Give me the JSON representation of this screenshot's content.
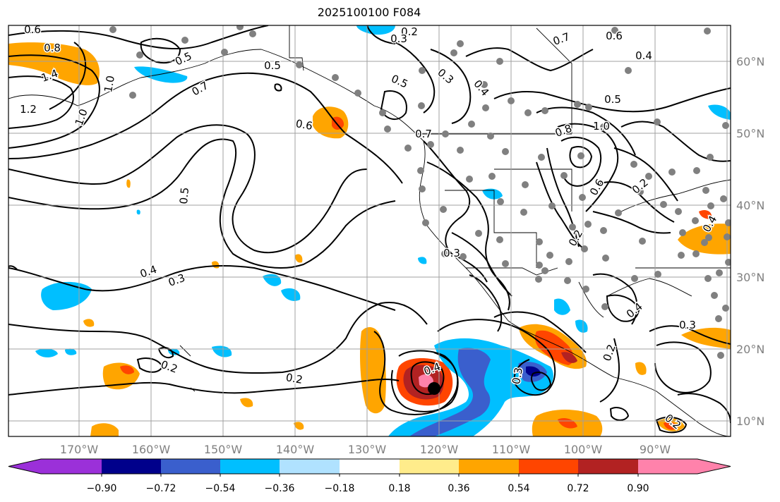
{
  "title": "2025100100 F084",
  "lon_ticks": [
    "170°W",
    "160°W",
    "150°W",
    "140°W",
    "130°W",
    "120°W",
    "110°W",
    "100°W",
    "90°W"
  ],
  "lat_ticks": [
    "60°N",
    "50°N",
    "40°N",
    "30°N",
    "20°N",
    "10°N"
  ],
  "colorbar": {
    "colors": [
      "#9b30d9",
      "#00008b",
      "#3a5fcd",
      "#00bfff",
      "#b0e2ff",
      "#ffffff",
      "#ffec8b",
      "#ffa500",
      "#ff4500",
      "#b22222",
      "#ff82ab"
    ],
    "tick_labels": [
      "−0.90",
      "−0.72",
      "−0.54",
      "−0.36",
      "−0.18",
      "0.18",
      "0.36",
      "0.54",
      "0.72",
      "0.90"
    ]
  },
  "contour_labels": [
    "0.6",
    "0.8",
    "1.4",
    "1.2",
    "1.0",
    "0.5",
    "0.7",
    "0.5",
    "0.2",
    "0.3",
    "0.5",
    "0.3",
    "0.4",
    "0.7",
    "0.6",
    "0.4",
    "0.6",
    "0.5",
    "0.7",
    "0.8",
    "1.0",
    "0.5",
    "0.4",
    "0.3",
    "0.2",
    "0.2",
    "0.4",
    "0.3",
    "0.2",
    "0.2",
    "0.4",
    "0.3",
    "0.4",
    "0.3",
    "0.2",
    "0.2",
    "0.6",
    "1.0"
  ],
  "colors": {
    "land_marker": "#808080",
    "storm_marker": "#000000",
    "grid": "#a0a0a0"
  }
}
